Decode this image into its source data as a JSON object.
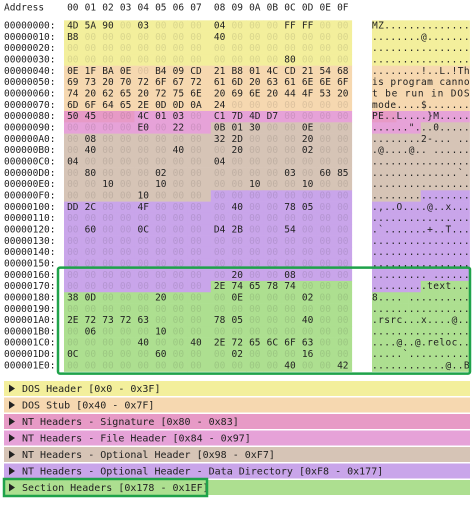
{
  "header": {
    "address": "Address",
    "columns": [
      "00",
      "01",
      "02",
      "03",
      "04",
      "05",
      "06",
      "07",
      "08",
      "09",
      "0A",
      "0B",
      "0C",
      "0D",
      "0E",
      "0F"
    ]
  },
  "rows": [
    {
      "address": "00000000:",
      "bytes": [
        "4D",
        "5A",
        "90",
        "00",
        "03",
        "00",
        "00",
        "00",
        "04",
        "00",
        "00",
        "00",
        "FF",
        "FF",
        "00",
        "00"
      ],
      "ascii": "MZ.............."
    },
    {
      "address": "00000010:",
      "bytes": [
        "B8",
        "00",
        "00",
        "00",
        "00",
        "00",
        "00",
        "00",
        "40",
        "00",
        "00",
        "00",
        "00",
        "00",
        "00",
        "00"
      ],
      "ascii": "........@......."
    },
    {
      "address": "00000020:",
      "bytes": [
        "00",
        "00",
        "00",
        "00",
        "00",
        "00",
        "00",
        "00",
        "00",
        "00",
        "00",
        "00",
        "00",
        "00",
        "00",
        "00"
      ],
      "ascii": "................"
    },
    {
      "address": "00000030:",
      "bytes": [
        "00",
        "00",
        "00",
        "00",
        "00",
        "00",
        "00",
        "00",
        "00",
        "00",
        "00",
        "00",
        "80",
        "00",
        "00",
        "00"
      ],
      "ascii": "................"
    },
    {
      "address": "00000040:",
      "bytes": [
        "0E",
        "1F",
        "BA",
        "0E",
        "00",
        "B4",
        "09",
        "CD",
        "21",
        "B8",
        "01",
        "4C",
        "CD",
        "21",
        "54",
        "68"
      ],
      "ascii": "........!..L.!Th"
    },
    {
      "address": "00000050:",
      "bytes": [
        "69",
        "73",
        "20",
        "70",
        "72",
        "6F",
        "67",
        "72",
        "61",
        "6D",
        "20",
        "63",
        "61",
        "6E",
        "6E",
        "6F"
      ],
      "ascii": "is program canno"
    },
    {
      "address": "00000060:",
      "bytes": [
        "74",
        "20",
        "62",
        "65",
        "20",
        "72",
        "75",
        "6E",
        "20",
        "69",
        "6E",
        "20",
        "44",
        "4F",
        "53",
        "20"
      ],
      "ascii": "t be run in DOS "
    },
    {
      "address": "00000070:",
      "bytes": [
        "6D",
        "6F",
        "64",
        "65",
        "2E",
        "0D",
        "0D",
        "0A",
        "24",
        "00",
        "00",
        "00",
        "00",
        "00",
        "00",
        "00"
      ],
      "ascii": "mode....$......."
    },
    {
      "address": "00000080:",
      "bytes": [
        "50",
        "45",
        "00",
        "00",
        "4C",
        "01",
        "03",
        "00",
        "C1",
        "7D",
        "4D",
        "D7",
        "00",
        "00",
        "00",
        "00"
      ],
      "ascii": "PE..L....}M....."
    },
    {
      "address": "00000090:",
      "bytes": [
        "00",
        "00",
        "00",
        "00",
        "E0",
        "00",
        "22",
        "00",
        "0B",
        "01",
        "30",
        "00",
        "00",
        "0E",
        "00",
        "00"
      ],
      "ascii": "......\"...0....."
    },
    {
      "address": "000000A0:",
      "bytes": [
        "00",
        "08",
        "00",
        "00",
        "00",
        "00",
        "00",
        "00",
        "32",
        "2D",
        "00",
        "00",
        "00",
        "20",
        "00",
        "00"
      ],
      "ascii": "........2-... .."
    },
    {
      "address": "000000B0:",
      "bytes": [
        "00",
        "40",
        "00",
        "00",
        "00",
        "00",
        "40",
        "00",
        "00",
        "20",
        "00",
        "00",
        "00",
        "02",
        "00",
        "00"
      ],
      "ascii": ".@....@.. ......"
    },
    {
      "address": "000000C0:",
      "bytes": [
        "04",
        "00",
        "00",
        "00",
        "00",
        "00",
        "00",
        "00",
        "04",
        "00",
        "00",
        "00",
        "00",
        "00",
        "00",
        "00"
      ],
      "ascii": "................"
    },
    {
      "address": "000000D0:",
      "bytes": [
        "00",
        "80",
        "00",
        "00",
        "00",
        "02",
        "00",
        "00",
        "00",
        "00",
        "00",
        "00",
        "03",
        "00",
        "60",
        "85"
      ],
      "ascii": "..............`."
    },
    {
      "address": "000000E0:",
      "bytes": [
        "00",
        "00",
        "10",
        "00",
        "00",
        "10",
        "00",
        "00",
        "00",
        "00",
        "10",
        "00",
        "00",
        "10",
        "00",
        "00"
      ],
      "ascii": "................"
    },
    {
      "address": "000000F0:",
      "bytes": [
        "00",
        "00",
        "00",
        "00",
        "10",
        "00",
        "00",
        "00",
        "00",
        "00",
        "00",
        "00",
        "00",
        "00",
        "00",
        "00"
      ],
      "ascii": "................"
    },
    {
      "address": "00000100:",
      "bytes": [
        "DD",
        "2C",
        "00",
        "00",
        "4F",
        "00",
        "00",
        "00",
        "00",
        "40",
        "00",
        "00",
        "78",
        "05",
        "00",
        "00"
      ],
      "ascii": ".,..O....@..x..."
    },
    {
      "address": "00000110:",
      "bytes": [
        "00",
        "00",
        "00",
        "00",
        "00",
        "00",
        "00",
        "00",
        "00",
        "00",
        "00",
        "00",
        "00",
        "00",
        "00",
        "00"
      ],
      "ascii": "................"
    },
    {
      "address": "00000120:",
      "bytes": [
        "00",
        "60",
        "00",
        "00",
        "0C",
        "00",
        "00",
        "00",
        "D4",
        "2B",
        "00",
        "00",
        "54",
        "00",
        "00",
        "00"
      ],
      "ascii": ".`.......+..T..."
    },
    {
      "address": "00000130:",
      "bytes": [
        "00",
        "00",
        "00",
        "00",
        "00",
        "00",
        "00",
        "00",
        "00",
        "00",
        "00",
        "00",
        "00",
        "00",
        "00",
        "00"
      ],
      "ascii": "................"
    },
    {
      "address": "00000140:",
      "bytes": [
        "00",
        "00",
        "00",
        "00",
        "00",
        "00",
        "00",
        "00",
        "00",
        "00",
        "00",
        "00",
        "00",
        "00",
        "00",
        "00"
      ],
      "ascii": "................"
    },
    {
      "address": "00000150:",
      "bytes": [
        "00",
        "00",
        "00",
        "00",
        "00",
        "00",
        "00",
        "00",
        "00",
        "00",
        "00",
        "00",
        "00",
        "00",
        "00",
        "00"
      ],
      "ascii": "................"
    },
    {
      "address": "00000160:",
      "bytes": [
        "00",
        "00",
        "00",
        "00",
        "00",
        "00",
        "00",
        "00",
        "00",
        "20",
        "00",
        "00",
        "08",
        "00",
        "00",
        "00"
      ],
      "ascii": "......... ......"
    },
    {
      "address": "00000170:",
      "bytes": [
        "00",
        "00",
        "00",
        "00",
        "00",
        "00",
        "00",
        "00",
        "2E",
        "74",
        "65",
        "78",
        "74",
        "00",
        "00",
        "00"
      ],
      "ascii": ".........text..."
    },
    {
      "address": "00000180:",
      "bytes": [
        "38",
        "0D",
        "00",
        "00",
        "00",
        "20",
        "00",
        "00",
        "00",
        "0E",
        "00",
        "00",
        "00",
        "02",
        "00",
        "00"
      ],
      "ascii": "8.... .........."
    },
    {
      "address": "00000190:",
      "bytes": [
        "00",
        "00",
        "00",
        "00",
        "00",
        "00",
        "00",
        "00",
        "00",
        "00",
        "00",
        "00",
        "00",
        "00",
        "00",
        "00"
      ],
      "ascii": "................"
    },
    {
      "address": "000001A0:",
      "bytes": [
        "2E",
        "72",
        "73",
        "72",
        "63",
        "00",
        "00",
        "00",
        "78",
        "05",
        "00",
        "00",
        "00",
        "40",
        "00",
        "00"
      ],
      "ascii": ".rsrc...x....@.."
    },
    {
      "address": "000001B0:",
      "bytes": [
        "00",
        "06",
        "00",
        "00",
        "00",
        "10",
        "00",
        "00",
        "00",
        "00",
        "00",
        "00",
        "00",
        "00",
        "00",
        "00"
      ],
      "ascii": "................"
    },
    {
      "address": "000001C0:",
      "bytes": [
        "00",
        "00",
        "00",
        "00",
        "40",
        "00",
        "00",
        "40",
        "2E",
        "72",
        "65",
        "6C",
        "6F",
        "63",
        "00",
        "00"
      ],
      "ascii": "....@..@.reloc.."
    },
    {
      "address": "000001D0:",
      "bytes": [
        "0C",
        "00",
        "00",
        "00",
        "00",
        "60",
        "00",
        "00",
        "00",
        "02",
        "00",
        "00",
        "00",
        "16",
        "00",
        "00"
      ],
      "ascii": ".....`.........."
    },
    {
      "address": "000001E0:",
      "bytes": [
        "00",
        "00",
        "00",
        "00",
        "00",
        "00",
        "00",
        "00",
        "00",
        "00",
        "00",
        "00",
        "40",
        "00",
        "00",
        "42"
      ],
      "ascii": "............@..B"
    }
  ],
  "sections": [
    {
      "label": "DOS Header [0x0 - 0x3F]",
      "start": 0,
      "end": 63,
      "color": "#f3ef9c"
    },
    {
      "label": "DOS Stub [0x40 - 0x7F]",
      "start": 64,
      "end": 127,
      "color": "#f6d8b0"
    },
    {
      "label": "NT Headers - Signature [0x80 - 0x83]",
      "start": 128,
      "end": 131,
      "color": "#e79ac6"
    },
    {
      "label": "NT Headers - File Header [0x84 - 0x97]",
      "start": 132,
      "end": 151,
      "color": "#e6a2d8"
    },
    {
      "label": "NT Headers - Optional Header [0x98 - 0xF7]",
      "start": 152,
      "end": 247,
      "color": "#d6c4b6"
    },
    {
      "label": "NT Headers - Optional Header - Data Directory [0xF8 - 0x177]",
      "start": 248,
      "end": 375,
      "color": "#c9a5ea"
    },
    {
      "label": "Section Headers [0x178 - 0x1EF]",
      "start": 376,
      "end": 495,
      "color": "#addf90"
    }
  ]
}
